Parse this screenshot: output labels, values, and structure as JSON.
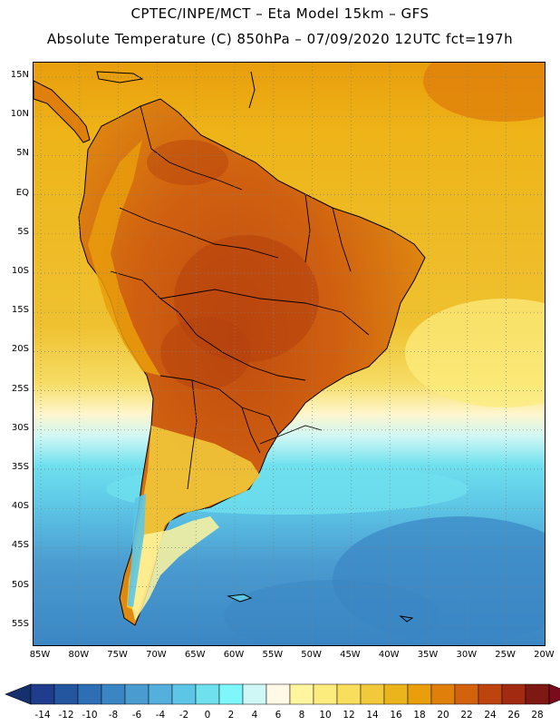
{
  "title_line1": "CPTEC/INPE/MCT –  Eta Model 15km – GFS",
  "title_line2": "Absolute Temperature (C) 850hPa – 07/09/2020 12UTC fct=197h",
  "latitude_ticks": [
    "15N",
    "10N",
    "5N",
    "EQ",
    "5S",
    "10S",
    "15S",
    "20S",
    "25S",
    "30S",
    "35S",
    "40S",
    "45S",
    "50S",
    "55S"
  ],
  "longitude_ticks": [
    "85W",
    "80W",
    "75W",
    "70W",
    "65W",
    "60W",
    "55W",
    "50W",
    "45W",
    "40W",
    "35W",
    "30W",
    "25W",
    "20W"
  ],
  "colorbar": {
    "labels": [
      "-14",
      "-12",
      "-10",
      "-8",
      "-6",
      "-4",
      "-2",
      "0",
      "2",
      "4",
      "6",
      "8",
      "10",
      "12",
      "14",
      "16",
      "18",
      "20",
      "22",
      "24",
      "26",
      "28"
    ],
    "colors": [
      "#1f3d8c",
      "#2456a0",
      "#2e6eb4",
      "#3a86c4",
      "#4a9bd0",
      "#55afdd",
      "#5dc6e6",
      "#6ee0ee",
      "#7ef7fa",
      "#cff7f5",
      "#fff9e6",
      "#fff59e",
      "#fcec7e",
      "#f8de5c",
      "#f1c93a",
      "#ecb41c",
      "#e99e0c",
      "#e0800a",
      "#d2620c",
      "#bd440e",
      "#a22a10",
      "#7d1812"
    ],
    "underflow_color": "#16306e",
    "overflow_color": "#7a0a1c"
  },
  "map": {
    "ocean_colors": {
      "tropical": "#ecb41c",
      "north_warm": "#e99e0c",
      "south_cold": "#4a9bd0"
    },
    "land_colors": {
      "hot": "#c9570f",
      "warm": "#e0800a",
      "mild": "#f1c93a",
      "cool": "#fcec7e",
      "cold": "#5dc6e6"
    }
  }
}
